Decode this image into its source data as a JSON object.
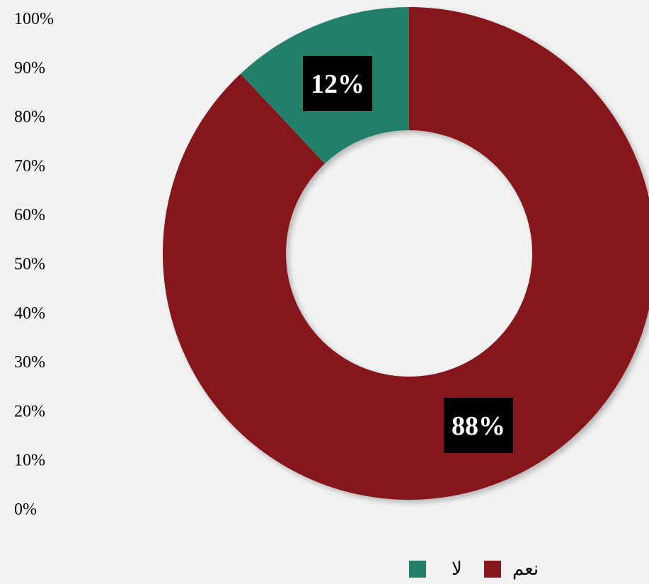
{
  "chart_data": {
    "type": "pie",
    "variant": "donut",
    "categories": [
      "نعم",
      "لا"
    ],
    "values": [
      88,
      12
    ],
    "value_labels": [
      "88%",
      "12%"
    ],
    "colors": [
      "#85191e",
      "#237f69"
    ],
    "data_label_background": "#000000",
    "data_label_color": "#ffffff",
    "axis_ticks": [
      "100%",
      "90%",
      "80%",
      "70%",
      "60%",
      "50%",
      "40%",
      "30%",
      "20%",
      "10%",
      "0%"
    ],
    "legend_position": "bottom",
    "background": "#f2f2f2"
  },
  "legend": {
    "no_label": "لا",
    "yes_label": "نعم"
  }
}
